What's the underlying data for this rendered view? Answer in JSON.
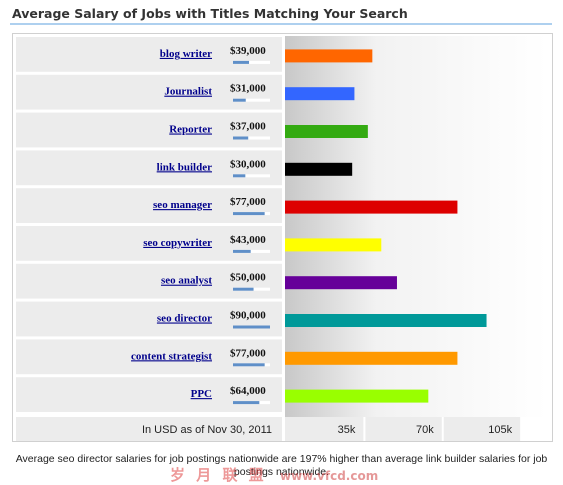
{
  "title": "Average Salary of Jobs with Titles Matching Your Search",
  "footnote": "Average seo director salaries for job postings nationwide are 197% higher than average link builder salaries for job postings nationwide.",
  "watermark": "岁 月 联 盟  www.vfcd.com",
  "chart_data": {
    "type": "bar",
    "orientation": "horizontal",
    "categories": [
      "blog writer",
      "Journalist",
      "Reporter",
      "link builder",
      "seo manager",
      "seo copywriter",
      "seo analyst",
      "seo director",
      "content strategist",
      "PPC"
    ],
    "values": [
      39000,
      31000,
      37000,
      30000,
      77000,
      43000,
      50000,
      90000,
      77000,
      64000
    ],
    "value_labels": [
      "$39,000",
      "$31,000",
      "$37,000",
      "$30,000",
      "$77,000",
      "$43,000",
      "$50,000",
      "$90,000",
      "$77,000",
      "$64,000"
    ],
    "colors": [
      "#ff6600",
      "#3366ff",
      "#33aa11",
      "#000000",
      "#dd0000",
      "#ffff00",
      "#660099",
      "#009999",
      "#ff9900",
      "#99ff00"
    ],
    "xlabel": "In USD as of Nov 30, 2011",
    "ylabel": "",
    "xlim": [
      0,
      117000
    ],
    "xticks": [
      35000,
      70000,
      105000
    ],
    "xtick_labels": [
      "35k",
      "70k",
      "105k"
    ],
    "grid": false,
    "legend": "none"
  }
}
